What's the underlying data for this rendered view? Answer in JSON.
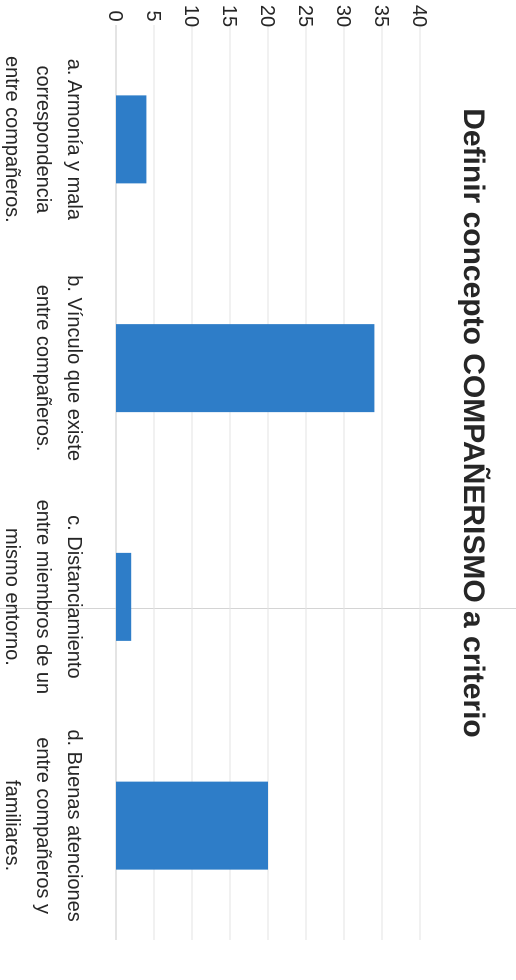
{
  "chart_data": {
    "type": "bar",
    "title_prefix": "Definir concepto ",
    "title_emphasis": "COMPAÑERISMO a criterio",
    "categories": [
      [
        "a. Armonía y mala",
        "correspondencia",
        "entre compañeros."
      ],
      [
        "b. Vínculo que existe",
        "entre compañeros."
      ],
      [
        "c. Distanciamiento",
        "entre miembros de un",
        "mismo entorno."
      ],
      [
        "d. Buenas atenciones",
        "entre compañeros y",
        "familiares."
      ]
    ],
    "values": [
      4,
      34,
      2,
      20
    ],
    "yticks": [
      "0",
      "5",
      "10",
      "15",
      "20",
      "25",
      "30",
      "35",
      "40"
    ],
    "ylim": [
      0,
      40
    ],
    "grid": true,
    "bar_color": "#2e7dc8",
    "orientation": "rotated-90-clockwise"
  }
}
